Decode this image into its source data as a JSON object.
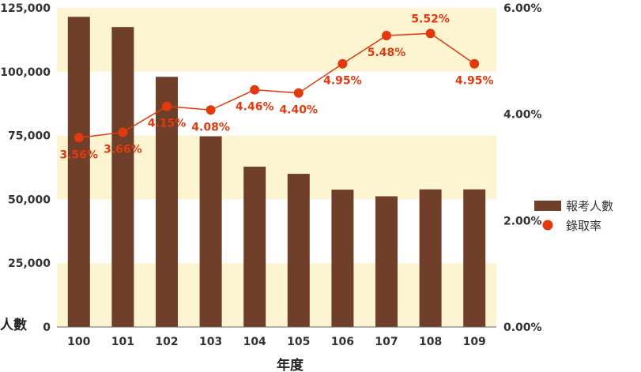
{
  "chart_data": {
    "type": "bar",
    "categories": [
      "100",
      "101",
      "102",
      "103",
      "104",
      "105",
      "106",
      "107",
      "108",
      "109"
    ],
    "series": [
      {
        "name": "報考人數",
        "type": "bar",
        "axis": "left",
        "color": "#6f3f2a",
        "values": [
          121500,
          117500,
          98000,
          74700,
          62800,
          60000,
          53800,
          51200,
          53900,
          53900
        ]
      },
      {
        "name": "錄取率",
        "type": "line",
        "axis": "right",
        "color": "#e03a0e",
        "values": [
          3.56,
          3.66,
          4.15,
          4.08,
          4.46,
          4.4,
          4.95,
          5.48,
          5.52,
          4.95
        ],
        "labels": [
          "3.56%",
          "3.66%",
          "4.15%",
          "4.08%",
          "4.46%",
          "4.40%",
          "4.95%",
          "5.48%",
          "5.52%",
          "4.95%"
        ]
      }
    ],
    "xlabel": "年度",
    "ylabel": "人數",
    "ylim_left": [
      0,
      125000
    ],
    "ylim_right": [
      0,
      6
    ],
    "left_ticks": [
      "0",
      "25,000",
      "50,000",
      "75,000",
      "100,000",
      "125,000"
    ],
    "right_ticks": [
      "0.00%",
      "2.00%",
      "4.00%",
      "6.00%"
    ],
    "band_color": "#fdf4d2",
    "legend_position": "right"
  }
}
